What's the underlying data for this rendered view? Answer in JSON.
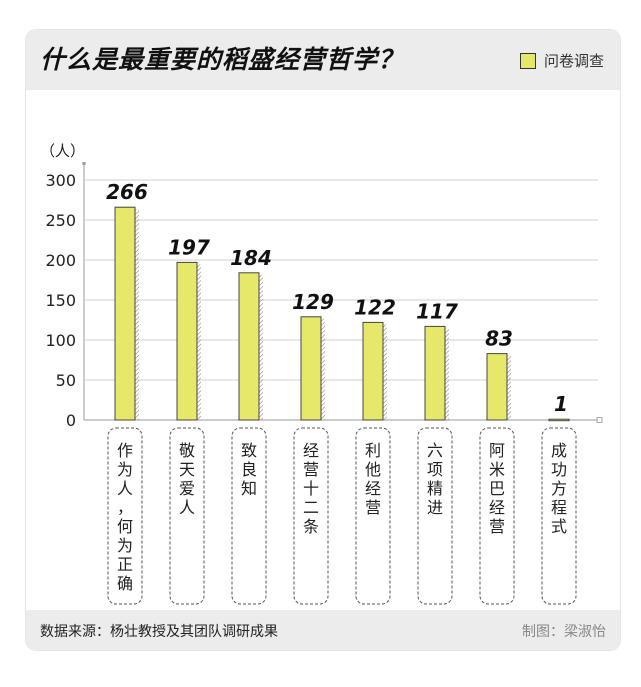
{
  "header": {
    "title": "什么是最重要的稻盛经营哲学？",
    "legend_label": "问卷调查"
  },
  "footer": {
    "source": "数据来源：杨壮教授及其团队调研成果",
    "credit": "制图：梁淑怡"
  },
  "colors": {
    "bar_fill": "#e6e86a",
    "bar_stroke": "#444444",
    "grid": "#cfcfcf",
    "panel": "#ececec"
  },
  "chart_data": {
    "type": "bar",
    "title": "什么是最重要的稻盛经营哲学？",
    "ylabel": "（人）",
    "xlabel": "",
    "ylim": [
      0,
      300
    ],
    "yticks": [
      0,
      50,
      100,
      150,
      200,
      250,
      300
    ],
    "grid": true,
    "legend_position": "top-right",
    "categories": [
      "作为人，何为正确",
      "敬天爱人",
      "致良知",
      "经营十二条",
      "利他经营",
      "六项精进",
      "阿米巴经营",
      "成功方程式"
    ],
    "series": [
      {
        "name": "问卷调查",
        "values": [
          266,
          197,
          184,
          129,
          122,
          117,
          83,
          1
        ]
      }
    ]
  }
}
